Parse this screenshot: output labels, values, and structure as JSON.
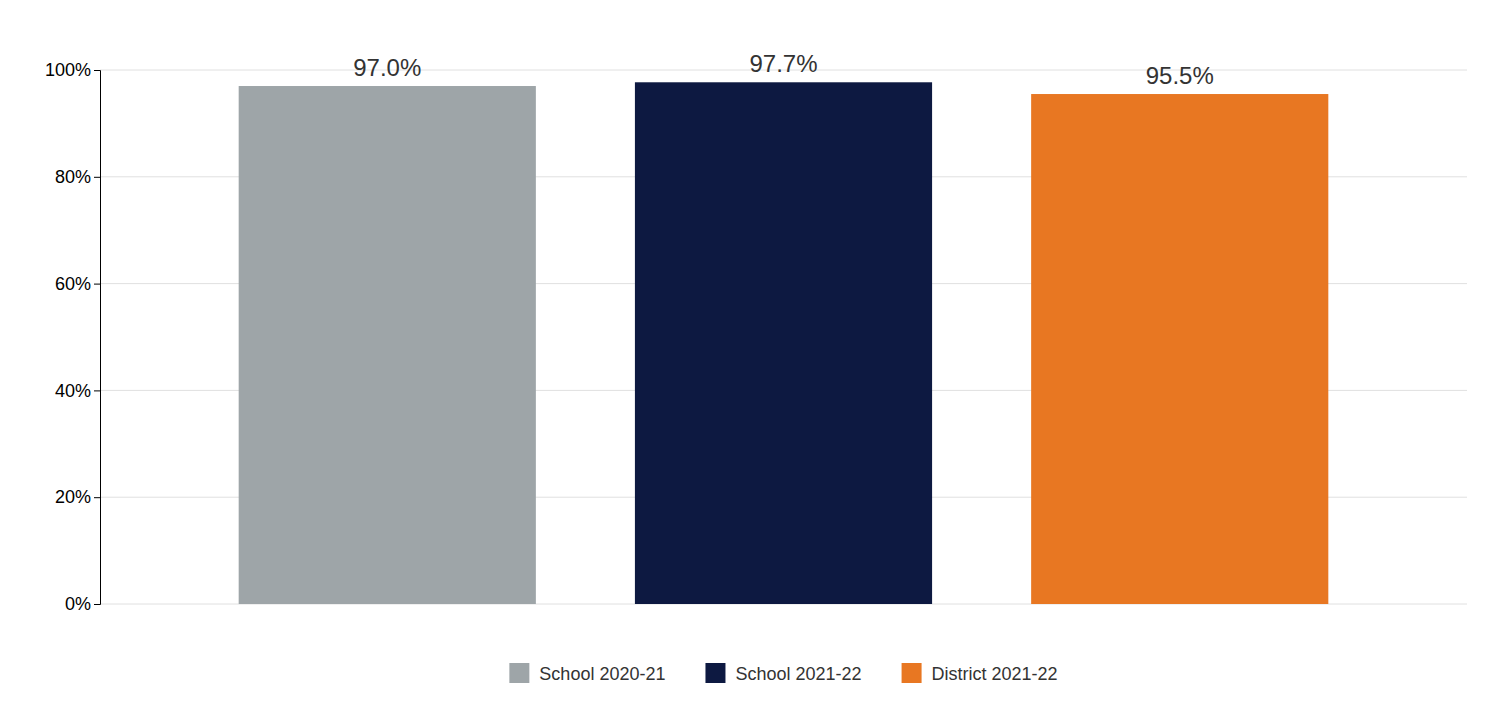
{
  "chart_data": {
    "type": "bar",
    "categories": [
      "School 2020-21",
      "School 2021-22",
      "District 2021-22"
    ],
    "values": [
      0.97,
      0.977,
      0.955
    ],
    "value_labels": [
      "97.0%",
      "97.7%",
      "95.5%"
    ],
    "colors": [
      "#9EA5A8",
      "#0D1941",
      "#E87722"
    ],
    "ylim": [
      0,
      1.0
    ],
    "yticks": [
      {
        "value": 0.0,
        "label": "0%"
      },
      {
        "value": 0.2,
        "label": "20%"
      },
      {
        "value": 0.4,
        "label": "40%"
      },
      {
        "value": 0.6,
        "label": "60%"
      },
      {
        "value": 0.8,
        "label": "80%"
      },
      {
        "value": 1.0,
        "label": "100%"
      }
    ],
    "grid": true,
    "legend": "bottom",
    "data_labels": true,
    "tick_labels": "y"
  }
}
